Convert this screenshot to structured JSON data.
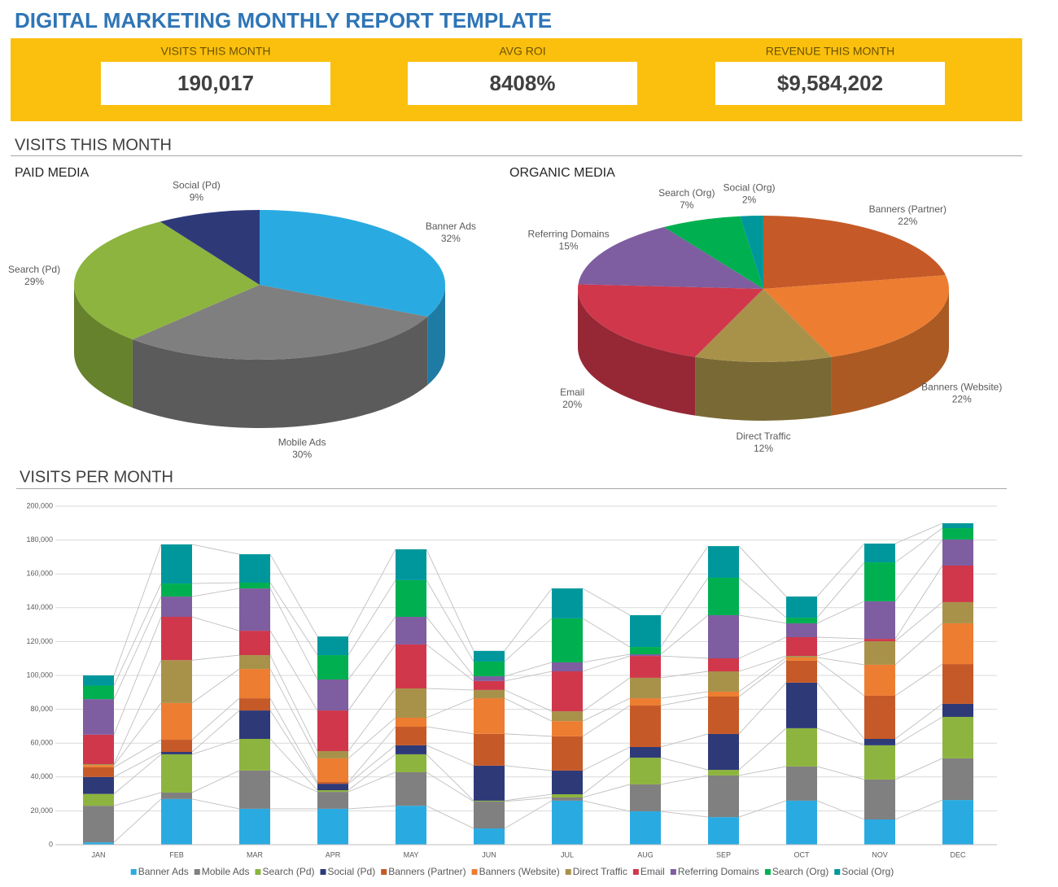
{
  "title": "DIGITAL MARKETING MONTHLY REPORT TEMPLATE",
  "kpis": [
    {
      "label": "VISITS THIS MONTH",
      "value": "190,017"
    },
    {
      "label": "AVG ROI",
      "value": "8408%"
    },
    {
      "label": "REVENUE THIS MONTH",
      "value": "$9,584,202"
    }
  ],
  "section_title": "VISITS THIS MONTH",
  "chart_data": [
    {
      "type": "pie",
      "title": "PAID MEDIA",
      "categories": [
        "Banner Ads",
        "Mobile Ads",
        "Search (Pd)",
        "Social (Pd)"
      ],
      "values": [
        32,
        30,
        29,
        9
      ],
      "value_labels": [
        "32%",
        "30%",
        "29%",
        "9%"
      ],
      "colors": [
        "#29abe2",
        "#7f7f7f",
        "#8db43e",
        "#2e3a78"
      ],
      "3d": true
    },
    {
      "type": "pie",
      "title": "ORGANIC MEDIA",
      "categories": [
        "Banners (Partner)",
        "Banners (Website)",
        "Direct Traffic",
        "Email",
        "Referring Domains",
        "Search (Org)",
        "Social (Org)"
      ],
      "values": [
        22,
        22,
        12,
        20,
        15,
        7,
        2
      ],
      "value_labels": [
        "22%",
        "22%",
        "12%",
        "20%",
        "15%",
        "7%",
        "2%"
      ],
      "colors": [
        "#c55a28",
        "#ed7d31",
        "#a8924a",
        "#d0374b",
        "#7e5ea0",
        "#00b050",
        "#00979c"
      ],
      "3d": true
    },
    {
      "type": "stacked_bar",
      "title": "VISITS PER MONTH",
      "categories": [
        "JAN",
        "FEB",
        "MAR",
        "APR",
        "MAY",
        "JUN",
        "JUL",
        "AUG",
        "SEP",
        "OCT",
        "NOV",
        "DEC"
      ],
      "series": [
        {
          "name": "Banner Ads",
          "color": "#29abe2",
          "values": [
            1400,
            27000,
            21200,
            21200,
            23000,
            9600,
            26000,
            19700,
            16300,
            26000,
            14900,
            26400
          ]
        },
        {
          "name": "Mobile Ads",
          "color": "#808080",
          "values": [
            21600,
            3800,
            22600,
            10000,
            19800,
            15900,
            1900,
            15900,
            24600,
            20200,
            23600,
            24600
          ]
        },
        {
          "name": "Search (Pd)",
          "color": "#8db43e",
          "values": [
            7000,
            22600,
            18700,
            1000,
            10600,
            500,
            1900,
            15800,
            3300,
            22600,
            20200,
            24500
          ]
        },
        {
          "name": "Social (Pd)",
          "color": "#2e3a78",
          "values": [
            10000,
            1400,
            16800,
            3800,
            5300,
            20700,
            14000,
            6300,
            21200,
            26900,
            3800,
            7700
          ]
        },
        {
          "name": "Banners (Partner)",
          "color": "#c55a28",
          "values": [
            5700,
            7200,
            7200,
            1000,
            11000,
            18800,
            20200,
            24500,
            22100,
            13000,
            25500,
            23500
          ]
        },
        {
          "name": "Banners (Website)",
          "color": "#ed7d31",
          "values": [
            1300,
            21700,
            17300,
            14000,
            5300,
            21000,
            9000,
            4300,
            2900,
            1900,
            18300,
            24100
          ]
        },
        {
          "name": "Direct Traffic",
          "color": "#a8924a",
          "values": [
            600,
            25300,
            8200,
            4300,
            17300,
            4900,
            5800,
            12100,
            12000,
            900,
            13900,
            12500
          ]
        },
        {
          "name": "Email",
          "color": "#d0374b",
          "values": [
            17400,
            25600,
            14400,
            24000,
            26000,
            5300,
            23600,
            12900,
            7700,
            11100,
            1400,
            21600
          ]
        },
        {
          "name": "Referring Domains",
          "color": "#7e5ea0",
          "values": [
            21000,
            12000,
            25000,
            18300,
            16300,
            2800,
            5300,
            1000,
            25500,
            8200,
            22200,
            15400
          ]
        },
        {
          "name": "Search (Org)",
          "color": "#00b050",
          "values": [
            8000,
            7700,
            3400,
            14400,
            21700,
            8700,
            26000,
            4300,
            22100,
            3300,
            23000,
            6700
          ]
        },
        {
          "name": "Social (Org)",
          "color": "#00979c",
          "values": [
            6000,
            23100,
            16800,
            11000,
            18200,
            6300,
            17700,
            18800,
            18700,
            12500,
            11100,
            2900
          ]
        }
      ],
      "ylim": [
        0,
        200000
      ],
      "yticks": [
        0,
        {
          "value": 20000,
          "label": "20,000"
        },
        {
          "value": 40000,
          "label": "40,000"
        },
        {
          "value": 60000,
          "label": "60,000"
        },
        {
          "value": 80000,
          "label": "80,000"
        },
        {
          "value": 100000,
          "label": "100,000"
        },
        {
          "value": 120000,
          "label": "120,000"
        },
        {
          "value": 140000,
          "label": "140,000"
        },
        {
          "value": 160000,
          "label": "160,000"
        },
        {
          "value": 180000,
          "label": "180,000"
        },
        {
          "value": 200000,
          "label": "200,000"
        }
      ],
      "grid": true,
      "series_lines": true,
      "legend": "bottom"
    }
  ]
}
